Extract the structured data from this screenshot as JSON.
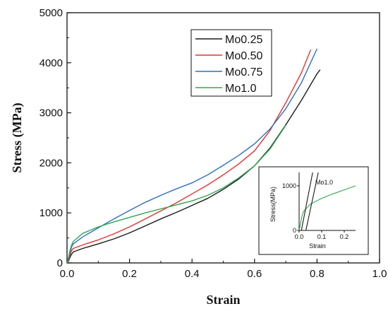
{
  "chart_data": [
    {
      "type": "line",
      "xlabel": "Strain",
      "ylabel": "Stress (MPa)",
      "xlim": [
        0,
        1.0
      ],
      "ylim": [
        0,
        5000
      ],
      "xticks": [
        "0.0",
        "0.2",
        "0.4",
        "0.6",
        "0.8",
        "1.0"
      ],
      "yticks": [
        "0",
        "1000",
        "2000",
        "3000",
        "4000",
        "5000"
      ],
      "grid": false,
      "legend": "top-right",
      "series": [
        {
          "name": "Mo0.25",
          "color": "#1a1a1a",
          "points": [
            [
              0,
              0
            ],
            [
              0.005,
              40
            ],
            [
              0.01,
              120
            ],
            [
              0.015,
              180
            ],
            [
              0.02,
              220
            ],
            [
              0.05,
              290
            ],
            [
              0.1,
              380
            ],
            [
              0.15,
              480
            ],
            [
              0.2,
              600
            ],
            [
              0.25,
              740
            ],
            [
              0.3,
              880
            ],
            [
              0.35,
              1010
            ],
            [
              0.4,
              1150
            ],
            [
              0.45,
              1290
            ],
            [
              0.5,
              1470
            ],
            [
              0.55,
              1680
            ],
            [
              0.6,
              1940
            ],
            [
              0.65,
              2300
            ],
            [
              0.7,
              2760
            ],
            [
              0.75,
              3250
            ],
            [
              0.8,
              3780
            ],
            [
              0.81,
              3860
            ]
          ]
        },
        {
          "name": "Mo0.50",
          "color": "#e8322e",
          "points": [
            [
              0,
              0
            ],
            [
              0.005,
              60
            ],
            [
              0.01,
              170
            ],
            [
              0.015,
              250
            ],
            [
              0.02,
              290
            ],
            [
              0.05,
              360
            ],
            [
              0.1,
              460
            ],
            [
              0.15,
              580
            ],
            [
              0.2,
              720
            ],
            [
              0.25,
              880
            ],
            [
              0.3,
              1040
            ],
            [
              0.35,
              1200
            ],
            [
              0.4,
              1380
            ],
            [
              0.45,
              1560
            ],
            [
              0.5,
              1760
            ],
            [
              0.55,
              1980
            ],
            [
              0.6,
              2240
            ],
            [
              0.65,
              2650
            ],
            [
              0.7,
              3200
            ],
            [
              0.75,
              3800
            ],
            [
              0.78,
              4260
            ]
          ]
        },
        {
          "name": "Mo0.75",
          "color": "#2f6fbf",
          "points": [
            [
              0,
              0
            ],
            [
              0.005,
              90
            ],
            [
              0.01,
              220
            ],
            [
              0.015,
              320
            ],
            [
              0.02,
              380
            ],
            [
              0.05,
              520
            ],
            [
              0.1,
              700
            ],
            [
              0.15,
              880
            ],
            [
              0.2,
              1050
            ],
            [
              0.25,
              1210
            ],
            [
              0.3,
              1350
            ],
            [
              0.35,
              1480
            ],
            [
              0.4,
              1600
            ],
            [
              0.45,
              1760
            ],
            [
              0.5,
              1950
            ],
            [
              0.55,
              2150
            ],
            [
              0.6,
              2380
            ],
            [
              0.65,
              2680
            ],
            [
              0.7,
              3080
            ],
            [
              0.75,
              3600
            ],
            [
              0.8,
              4280
            ]
          ]
        },
        {
          "name": "Mo1.0",
          "color": "#2ea84e",
          "points": [
            [
              0,
              0
            ],
            [
              0.005,
              120
            ],
            [
              0.01,
              260
            ],
            [
              0.015,
              360
            ],
            [
              0.02,
              430
            ],
            [
              0.05,
              590
            ],
            [
              0.1,
              720
            ],
            [
              0.15,
              820
            ],
            [
              0.2,
              910
            ],
            [
              0.25,
              1000
            ],
            [
              0.3,
              1080
            ],
            [
              0.35,
              1160
            ],
            [
              0.4,
              1240
            ],
            [
              0.45,
              1350
            ],
            [
              0.5,
              1500
            ],
            [
              0.55,
              1700
            ],
            [
              0.6,
              1940
            ],
            [
              0.65,
              2280
            ],
            [
              0.7,
              2750
            ]
          ]
        }
      ]
    },
    {
      "type": "line",
      "xlabel": "Strain",
      "ylabel": "Stress(MPa)",
      "xlim": [
        0,
        0.25
      ],
      "ylim": [
        0,
        1300
      ],
      "xticks": [
        "0.0",
        "0.1",
        "0.2"
      ],
      "yticks": [
        "0",
        "1000"
      ],
      "annotation": "Mo1.0",
      "series": [
        {
          "color": "#2ea84e",
          "points": [
            [
              0,
              0
            ],
            [
              0.005,
              120
            ],
            [
              0.01,
              260
            ],
            [
              0.015,
              360
            ],
            [
              0.02,
              430
            ],
            [
              0.05,
              590
            ],
            [
              0.1,
              720
            ],
            [
              0.15,
              820
            ],
            [
              0.2,
              910
            ],
            [
              0.25,
              1000
            ]
          ]
        },
        {
          "color": "#1a1a1a",
          "points": [
            [
              0.01,
              0
            ],
            [
              0.06,
              1300
            ]
          ]
        },
        {
          "color": "#1a1a1a",
          "points": [
            [
              0.03,
              0
            ],
            [
              0.085,
              1300
            ]
          ]
        }
      ]
    }
  ]
}
